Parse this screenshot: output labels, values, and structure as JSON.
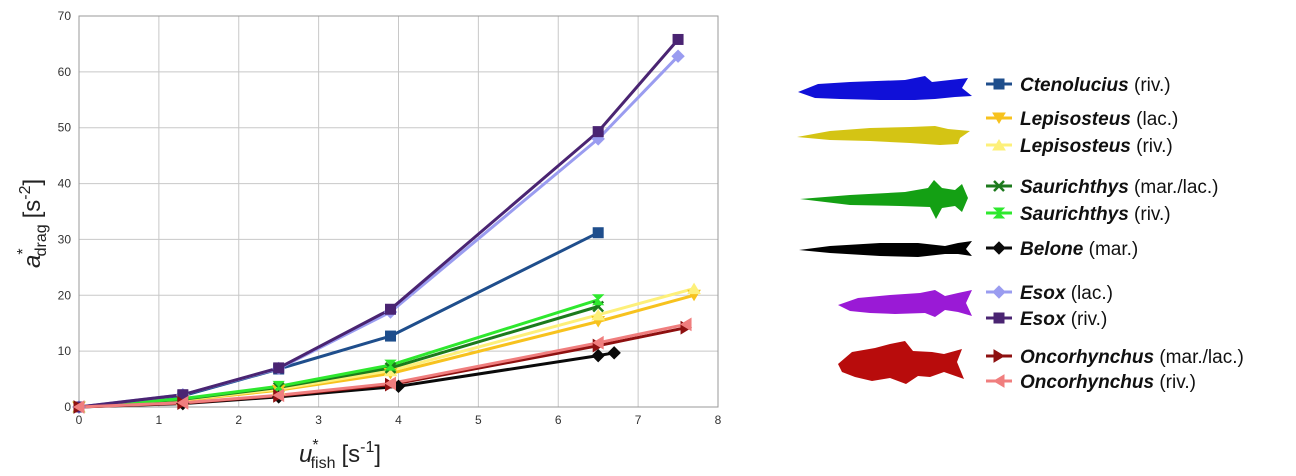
{
  "chart_data": {
    "type": "line",
    "xlabel": {
      "main": "u",
      "sup": "*",
      "sub": "fish",
      "unit_open": "[s",
      "unit_sup": "-1",
      "unit_close": "]"
    },
    "ylabel": {
      "main": "a",
      "sup": "*",
      "sub": "drag",
      "unit_open": "[s",
      "unit_sup": "-2",
      "unit_close": "]"
    },
    "xlim": [
      0,
      8
    ],
    "ylim": [
      0,
      70
    ],
    "xticks": [
      "0",
      "1",
      "2",
      "3",
      "4",
      "5",
      "6",
      "7",
      "8"
    ],
    "yticks": [
      "0",
      "10",
      "20",
      "30",
      "40",
      "50",
      "60",
      "70"
    ],
    "grid": true,
    "legend_position": "right",
    "series": [
      {
        "genus": "Ctenolucius",
        "habitat": "(riv.)",
        "color": "#1f4e8c",
        "marker": "square",
        "fish_icon": "ctenolucius-silhouette",
        "fish_color": "#1010d8",
        "x": [
          0,
          1.3,
          2.5,
          3.9,
          6.5
        ],
        "y": [
          0,
          2.0,
          6.8,
          12.7,
          31.2
        ]
      },
      {
        "genus": "Lepisosteus",
        "habitat": "(lac.)",
        "color": "#f7c21e",
        "marker": "tri-down",
        "fish_icon": "lepisosteus-silhouette",
        "fish_color": "#d4c414",
        "x": [
          0,
          1.3,
          2.5,
          3.9,
          6.5,
          7.7
        ],
        "y": [
          0,
          1.2,
          3.0,
          6.0,
          15.3,
          20.0
        ]
      },
      {
        "genus": "Lepisosteus",
        "habitat": "(riv.)",
        "color": "#fdf07a",
        "marker": "tri-up",
        "fish_icon": null,
        "x": [
          0,
          1.3,
          2.5,
          3.9,
          6.5,
          7.7
        ],
        "y": [
          0,
          1.3,
          3.2,
          6.5,
          16.5,
          21.2
        ]
      },
      {
        "genus": "Saurichthys",
        "habitat": "(mar./lac.)",
        "color": "#1c7a1c",
        "marker": "x",
        "fish_icon": "saurichthys-silhouette",
        "fish_color": "#14a014",
        "x": [
          0,
          1.3,
          2.5,
          3.9,
          6.5
        ],
        "y": [
          0,
          1.4,
          3.5,
          7.0,
          18.0
        ]
      },
      {
        "genus": "Saurichthys",
        "habitat": "(riv.)",
        "color": "#2ee82e",
        "marker": "hourglass",
        "fish_icon": null,
        "x": [
          0,
          1.3,
          2.5,
          3.9,
          6.5
        ],
        "y": [
          0,
          1.5,
          3.7,
          7.5,
          19.2
        ]
      },
      {
        "genus": "Belone",
        "habitat": "(mar.)",
        "color": "#0a0a0a",
        "marker": "diamond",
        "fish_icon": "belone-silhouette",
        "fish_color": "#000000",
        "x": [
          0,
          1.3,
          2.5,
          4.0,
          6.5,
          6.7
        ],
        "y": [
          0,
          0.6,
          1.8,
          3.7,
          9.2,
          9.7
        ]
      },
      {
        "genus": "Esox",
        "habitat": "(lac.)",
        "color": "#9a9cf0",
        "marker": "diamond",
        "fish_icon": "esox-silhouette",
        "fish_color": "#9a1ad6",
        "x": [
          0,
          1.3,
          2.5,
          3.9,
          6.5,
          7.5
        ],
        "y": [
          0,
          2.2,
          6.9,
          17.0,
          48.0,
          62.8
        ]
      },
      {
        "genus": "Esox",
        "habitat": "(riv.)",
        "color": "#4a2472",
        "marker": "square",
        "fish_icon": null,
        "x": [
          0,
          1.3,
          2.5,
          3.9,
          6.5,
          7.5
        ],
        "y": [
          0,
          2.2,
          7.0,
          17.5,
          49.3,
          65.8
        ]
      },
      {
        "genus": "Oncorhynchus",
        "habitat": "(mar./lac.)",
        "color": "#8e1010",
        "marker": "tri-right",
        "fish_icon": "oncorhynchus-silhouette",
        "fish_color": "#b80c0c",
        "x": [
          0,
          1.3,
          2.5,
          3.9,
          6.5,
          7.6
        ],
        "y": [
          0,
          0.7,
          2.0,
          4.0,
          11.0,
          14.2
        ]
      },
      {
        "genus": "Oncorhynchus",
        "habitat": "(riv.)",
        "color": "#f07e7e",
        "marker": "tri-left",
        "fish_icon": null,
        "x": [
          0,
          1.3,
          2.5,
          3.9,
          6.5,
          7.6
        ],
        "y": [
          0,
          0.75,
          2.1,
          4.2,
          11.5,
          14.8
        ]
      }
    ]
  }
}
